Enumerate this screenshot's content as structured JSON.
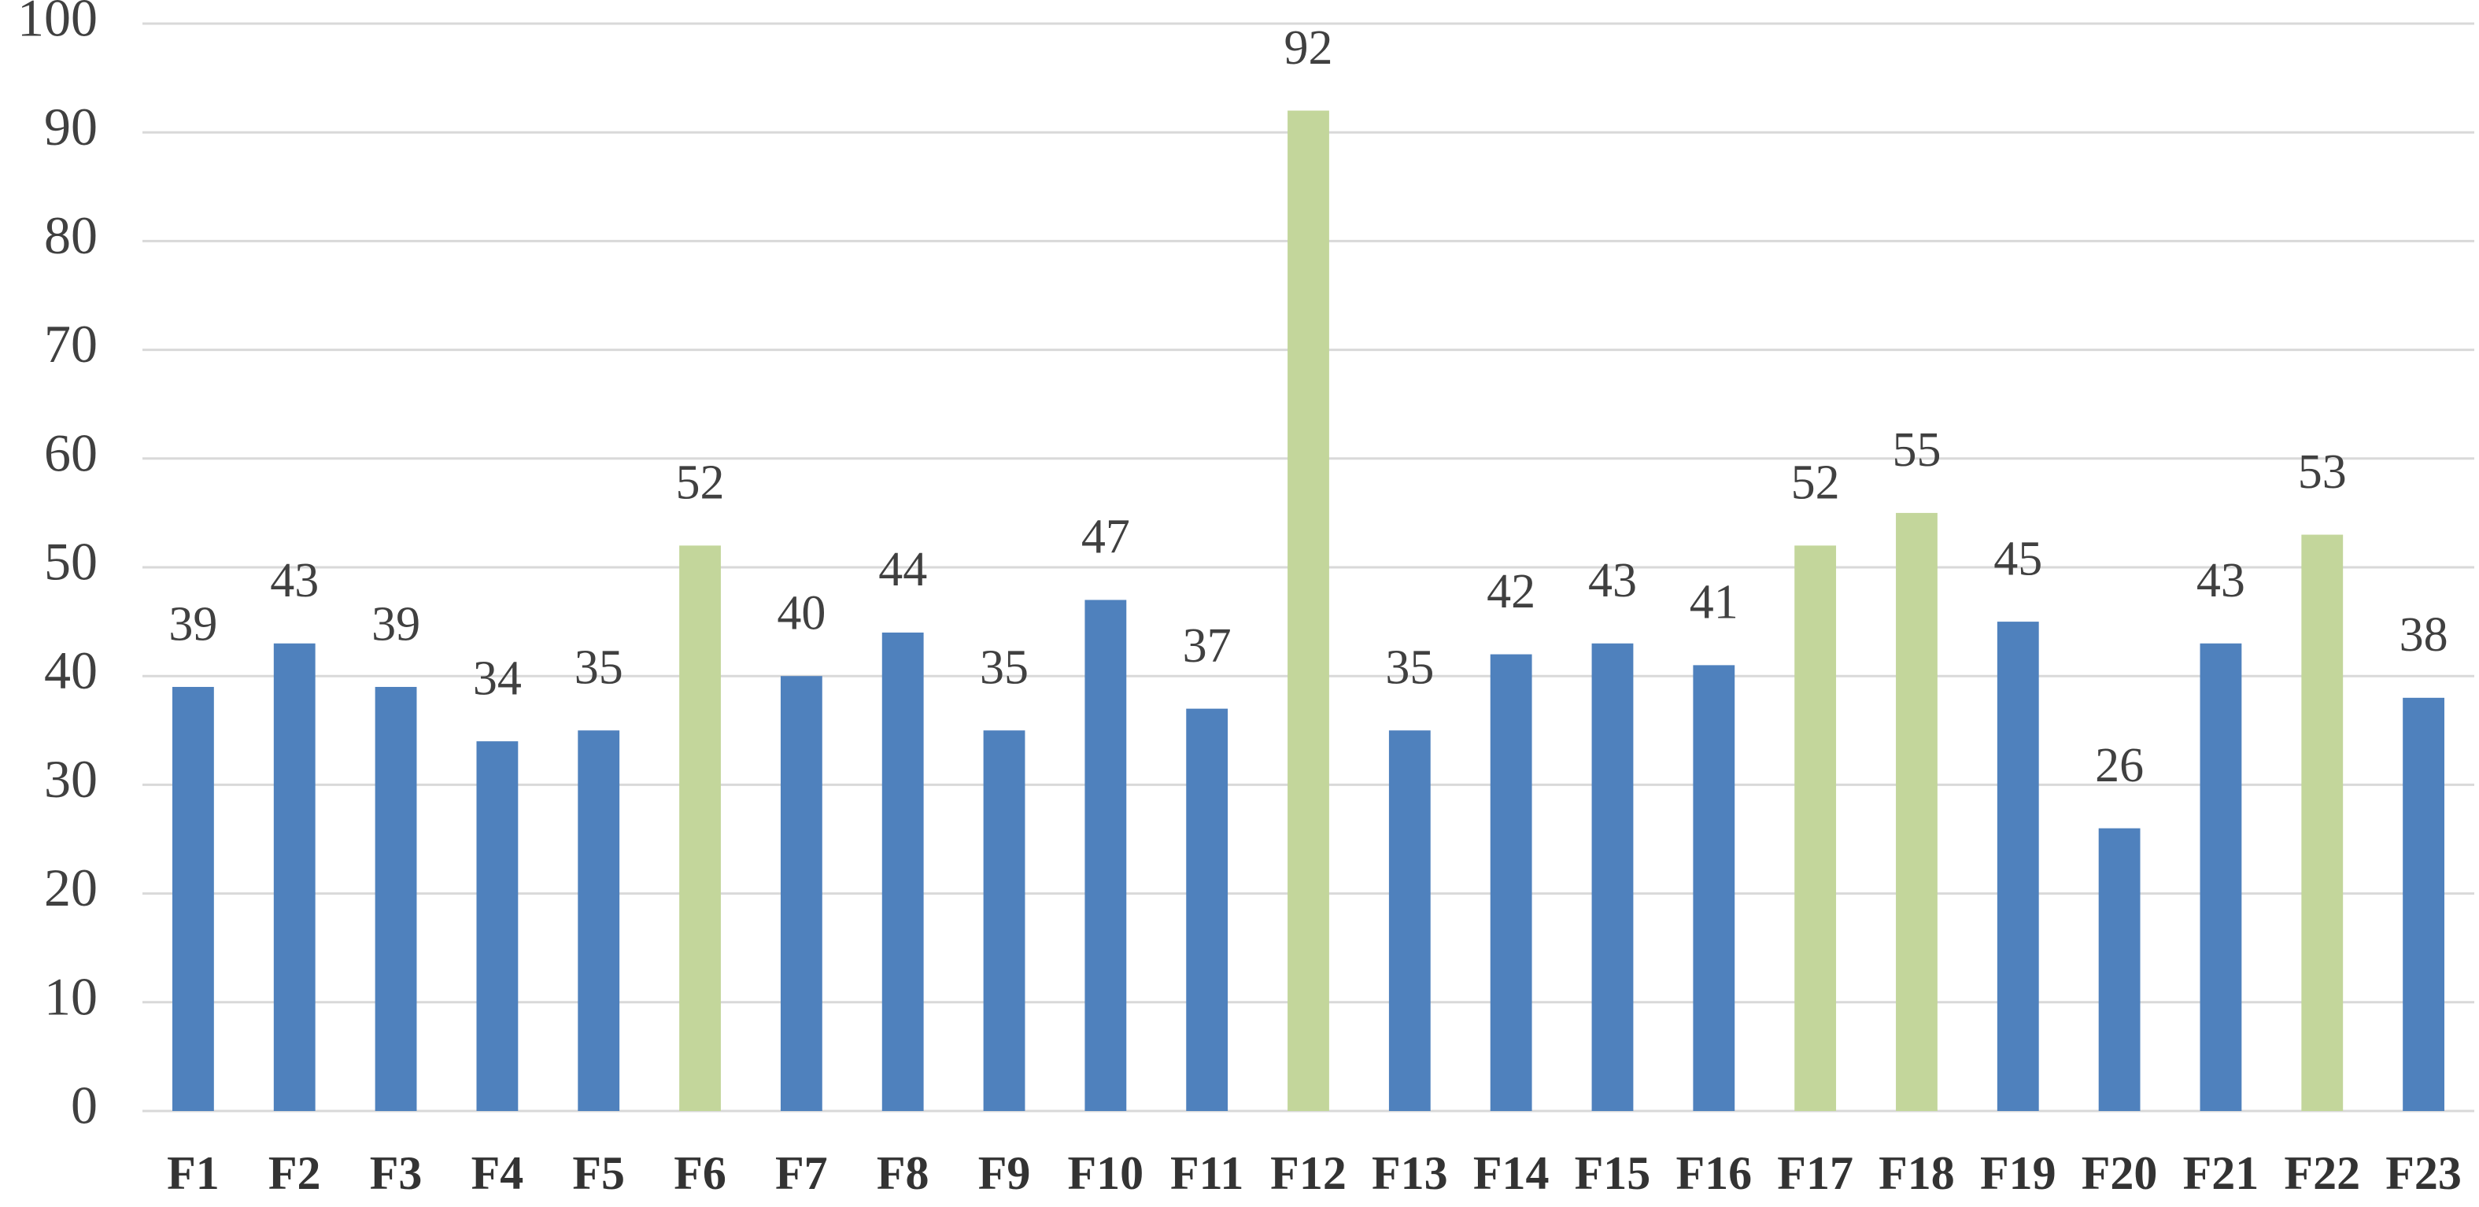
{
  "chart_data": {
    "type": "bar",
    "categories": [
      "F1",
      "F2",
      "F3",
      "F4",
      "F5",
      "F6",
      "F7",
      "F8",
      "F9",
      "F10",
      "F11",
      "F12",
      "F13",
      "F14",
      "F15",
      "F16",
      "F17",
      "F18",
      "F19",
      "F20",
      "F21",
      "F22",
      "F23"
    ],
    "values": [
      39,
      43,
      39,
      34,
      35,
      52,
      40,
      44,
      35,
      47,
      37,
      92,
      35,
      42,
      43,
      41,
      52,
      55,
      45,
      26,
      43,
      53,
      38
    ],
    "colors": [
      "#4f81bd",
      "#4f81bd",
      "#4f81bd",
      "#4f81bd",
      "#4f81bd",
      "#c3d69b",
      "#4f81bd",
      "#4f81bd",
      "#4f81bd",
      "#4f81bd",
      "#4f81bd",
      "#c3d69b",
      "#4f81bd",
      "#4f81bd",
      "#4f81bd",
      "#4f81bd",
      "#c3d69b",
      "#c3d69b",
      "#4f81bd",
      "#4f81bd",
      "#4f81bd",
      "#c3d69b",
      "#4f81bd"
    ],
    "ylim": [
      0,
      100
    ],
    "yticks": [
      0,
      10,
      20,
      30,
      40,
      50,
      60,
      70,
      80,
      90,
      100
    ],
    "grid": true
  }
}
